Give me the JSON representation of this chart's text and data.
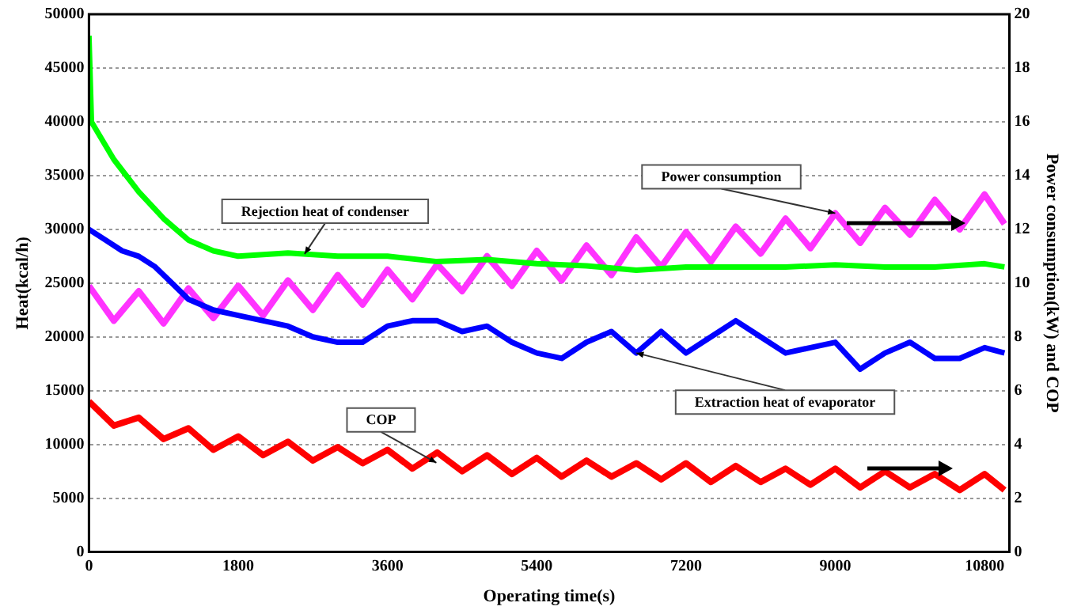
{
  "chart_data": {
    "type": "line",
    "xlabel": "Operating time(s)",
    "ylabel": "Heat(kcal/h)",
    "y2label": "Power consumption(kW) and COP",
    "xlim": [
      0,
      11100
    ],
    "xticks": [
      0,
      1800,
      3600,
      5400,
      7200,
      9000,
      10800
    ],
    "ylim": [
      0,
      50000
    ],
    "yticks": [
      0,
      5000,
      10000,
      15000,
      20000,
      25000,
      30000,
      35000,
      40000,
      45000,
      50000
    ],
    "y2lim": [
      0,
      20
    ],
    "y2ticks": [
      0,
      2,
      4,
      6,
      8,
      10,
      12,
      14,
      16,
      18,
      20
    ],
    "grid": "y",
    "marker": "none",
    "line_style": "solid",
    "series": [
      {
        "color": "#00ff00",
        "x": [
          0,
          30,
          300,
          600,
          900,
          1200,
          1500,
          1800,
          2400,
          3000,
          3600,
          4200,
          4800,
          5400,
          6000,
          6600,
          7200,
          7800,
          8400,
          9000,
          9600,
          10200,
          10800,
          11040
        ],
        "values": [
          48000,
          40000,
          36500,
          33500,
          31000,
          29000,
          28000,
          27500,
          27800,
          27500,
          27500,
          27000,
          27200,
          26800,
          26600,
          26200,
          26500,
          26500,
          26500,
          26700,
          26500,
          26500,
          26800,
          26500
        ]
      },
      {
        "color": "#0000ff",
        "x": [
          0,
          200,
          400,
          600,
          800,
          1000,
          1200,
          1500,
          1800,
          2100,
          2400,
          2700,
          3000,
          3300,
          3600,
          3900,
          4200,
          4500,
          4800,
          5100,
          5400,
          5700,
          6000,
          6300,
          6600,
          6900,
          7200,
          7500,
          7800,
          8100,
          8400,
          8700,
          9000,
          9300,
          9600,
          9900,
          10200,
          10500,
          10800,
          11040
        ],
        "values": [
          30000,
          29000,
          28000,
          27500,
          26500,
          25000,
          23500,
          22500,
          22000,
          21500,
          21000,
          20000,
          19500,
          19500,
          21000,
          21500,
          21500,
          20500,
          21000,
          19500,
          18500,
          18000,
          19500,
          20500,
          18500,
          20500,
          18500,
          20000,
          21500,
          20000,
          18500,
          19000,
          19500,
          17000,
          18500,
          19500,
          18000,
          18000,
          19000,
          18500
        ]
      },
      {
        "color": "#ff33ff",
        "axis": "y2",
        "x": [
          0,
          300,
          600,
          900,
          1200,
          1500,
          1800,
          2100,
          2400,
          2700,
          3000,
          3300,
          3600,
          3900,
          4200,
          4500,
          4800,
          5100,
          5400,
          5700,
          6000,
          6300,
          6600,
          6900,
          7200,
          7500,
          7800,
          8100,
          8400,
          8700,
          9000,
          9300,
          9600,
          9900,
          10200,
          10500,
          10800,
          11040
        ],
        "values": [
          9.9,
          8.6,
          9.7,
          8.5,
          9.8,
          8.7,
          9.9,
          8.8,
          10.1,
          9.0,
          10.3,
          9.2,
          10.5,
          9.4,
          10.7,
          9.7,
          11.0,
          9.9,
          11.2,
          10.1,
          11.4,
          10.3,
          11.7,
          10.6,
          11.9,
          10.8,
          12.1,
          11.1,
          12.4,
          11.3,
          12.6,
          11.5,
          12.8,
          11.8,
          13.1,
          12.0,
          13.3,
          12.2
        ]
      },
      {
        "color": "#ff0000",
        "axis": "y2",
        "x": [
          0,
          300,
          600,
          900,
          1200,
          1500,
          1800,
          2100,
          2400,
          2700,
          3000,
          3300,
          3600,
          3900,
          4200,
          4500,
          4800,
          5100,
          5400,
          5700,
          6000,
          6300,
          6600,
          6900,
          7200,
          7500,
          7800,
          8100,
          8400,
          8700,
          9000,
          9300,
          9600,
          9900,
          10200,
          10500,
          10800,
          11040
        ],
        "values": [
          5.6,
          4.7,
          5.0,
          4.2,
          4.6,
          3.8,
          4.3,
          3.6,
          4.1,
          3.4,
          3.9,
          3.3,
          3.8,
          3.1,
          3.7,
          3.0,
          3.6,
          2.9,
          3.5,
          2.8,
          3.4,
          2.8,
          3.3,
          2.7,
          3.3,
          2.6,
          3.2,
          2.6,
          3.1,
          2.5,
          3.1,
          2.4,
          3.0,
          2.4,
          2.9,
          2.3,
          2.9,
          2.3
        ]
      }
    ],
    "annotations": [
      {
        "text": "Rejection heat of condenser",
        "x": 2600,
        "y": 27700
      },
      {
        "text": "Power consumption",
        "x": 9000,
        "y": 31500
      },
      {
        "text": "COP",
        "x": 4190,
        "y": 8300
      },
      {
        "text": "Extraction heat of evaporator",
        "x": 6600,
        "y": 18500
      }
    ]
  }
}
